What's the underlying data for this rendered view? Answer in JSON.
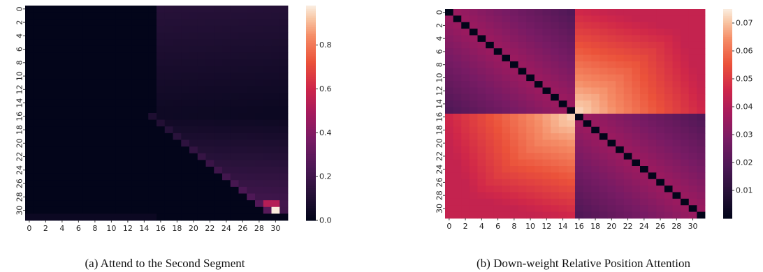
{
  "chart_data": [
    {
      "type": "heatmap",
      "caption": "(a) Attend to the Second Segment",
      "title": "",
      "xlabel": "",
      "ylabel": "",
      "rows": 32,
      "cols": 32,
      "x_ticks": [
        "0",
        "2",
        "4",
        "6",
        "8",
        "10",
        "12",
        "14",
        "16",
        "18",
        "20",
        "22",
        "24",
        "26",
        "28",
        "30"
      ],
      "y_ticks": [
        "0",
        "2",
        "4",
        "6",
        "8",
        "10",
        "12",
        "14",
        "16",
        "18",
        "20",
        "22",
        "24",
        "26",
        "28",
        "30"
      ],
      "colorbar": {
        "range": [
          0.0,
          0.98
        ],
        "ticks": [
          "0.0",
          "0.2",
          "0.4",
          "0.6",
          "0.8"
        ],
        "tick_values": [
          0.0,
          0.2,
          0.4,
          0.6,
          0.8
        ]
      },
      "colormap": "rocket",
      "pattern": {
        "description_values": "rows 0-15: cols 0-15 ~0, cols 16-31 ~0.03-0.12 decreasing down; rows 16-30: lower-left triangle ~0, upper-right band values rising toward 1 at (30,30); row 31: cols 0-15 ~0.03, cols 16-31 ~0",
        "max_cell": {
          "row": 30,
          "col": 30,
          "value": 0.98
        },
        "high_cells": [
          {
            "row": 29,
            "col": 29,
            "value": 0.55
          },
          {
            "row": 29,
            "col": 30,
            "value": 0.5
          },
          {
            "row": 30,
            "col": 31,
            "value": 0.2
          }
        ]
      }
    },
    {
      "type": "heatmap",
      "caption": "(b) Down-weight Relative Position Attention",
      "title": "",
      "xlabel": "",
      "ylabel": "",
      "rows": 32,
      "cols": 32,
      "x_ticks": [
        "0",
        "2",
        "4",
        "6",
        "8",
        "10",
        "12",
        "14",
        "16",
        "18",
        "20",
        "22",
        "24",
        "26",
        "28",
        "30"
      ],
      "y_ticks": [
        "0",
        "2",
        "4",
        "6",
        "8",
        "10",
        "12",
        "14",
        "16",
        "18",
        "20",
        "22",
        "24",
        "26",
        "28",
        "30"
      ],
      "colorbar": {
        "range": [
          0.0,
          0.075
        ],
        "ticks": [
          "0.01",
          "0.02",
          "0.03",
          "0.04",
          "0.05",
          "0.06",
          "0.07"
        ],
        "tick_values": [
          0.01,
          0.02,
          0.03,
          0.04,
          0.05,
          0.06,
          0.07
        ]
      },
      "colormap": "rocket",
      "pattern": {
        "description_values": "diagonal = 0; same-segment quadrants decay with distance from diagonal (~0.035 near, ~0.02 far); cross-segment quadrants ~0.045-0.07, peaking near (15,16) and (16,15); (15,15) and (16,16) region light ~0.07",
        "diagonal_value": 0.0
      }
    }
  ]
}
